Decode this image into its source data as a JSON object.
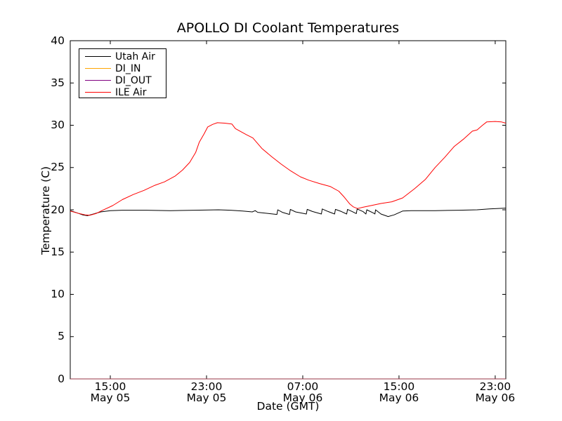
{
  "chart_data": {
    "type": "line",
    "title": "APOLLO DI Coolant Temperatures",
    "xlabel": "Date (GMT)",
    "ylabel": "Temperature (C)",
    "background": "#ffffff",
    "grid": false,
    "ylim": [
      0,
      40
    ],
    "yticks": [
      0,
      5,
      10,
      15,
      20,
      25,
      30,
      35,
      40
    ],
    "x_unit": "hours since May 05 00:00 GMT",
    "xlim": [
      11.67,
      47.88
    ],
    "xticks": [
      {
        "t": 15,
        "time": "15:00",
        "date": "May 05"
      },
      {
        "t": 23,
        "time": "23:00",
        "date": "May 05"
      },
      {
        "t": 31,
        "time": "07:00",
        "date": "May 06"
      },
      {
        "t": 39,
        "time": "15:00",
        "date": "May 06"
      },
      {
        "t": 47,
        "time": "23:00",
        "date": "May 06"
      }
    ],
    "legend": {
      "position": "upper left",
      "entries": [
        {
          "label": "Utah Air",
          "color": "#000000"
        },
        {
          "label": "DI_IN",
          "color": "#ffa500"
        },
        {
          "label": "DI_OUT",
          "color": "#800080"
        },
        {
          "label": "ILE Air",
          "color": "#ff0000"
        }
      ]
    },
    "series": [
      {
        "name": "Utah Air",
        "color": "#000000",
        "opacity": 1,
        "points": [
          [
            11.67,
            19.9
          ],
          [
            12.2,
            19.65
          ],
          [
            12.7,
            19.4
          ],
          [
            13.1,
            19.3
          ],
          [
            13.6,
            19.5
          ],
          [
            14.2,
            19.75
          ],
          [
            15,
            19.9
          ],
          [
            16,
            19.95
          ],
          [
            18,
            19.95
          ],
          [
            20,
            19.9
          ],
          [
            22,
            19.95
          ],
          [
            24,
            20
          ],
          [
            25,
            19.95
          ],
          [
            26,
            19.85
          ],
          [
            26.8,
            19.75
          ],
          [
            27.05,
            19.9
          ],
          [
            27.25,
            19.7
          ],
          [
            28.2,
            19.55
          ],
          [
            28.85,
            19.45
          ],
          [
            28.92,
            20
          ],
          [
            29.3,
            19.7
          ],
          [
            29.9,
            19.45
          ],
          [
            29.97,
            20.05
          ],
          [
            30.4,
            19.75
          ],
          [
            31.3,
            19.5
          ],
          [
            31.37,
            20.05
          ],
          [
            31.8,
            19.8
          ],
          [
            32.55,
            19.5
          ],
          [
            32.62,
            20.1
          ],
          [
            33.1,
            19.8
          ],
          [
            33.65,
            19.5
          ],
          [
            33.72,
            20.05
          ],
          [
            34.2,
            19.8
          ],
          [
            34.65,
            19.5
          ],
          [
            34.72,
            20.05
          ],
          [
            35.1,
            19.8
          ],
          [
            35.45,
            19.55
          ],
          [
            35.52,
            20.1
          ],
          [
            36,
            19.8
          ],
          [
            36.25,
            19.5
          ],
          [
            36.32,
            20
          ],
          [
            36.9,
            19.6
          ],
          [
            37,
            19.5
          ],
          [
            37.05,
            20
          ],
          [
            37.5,
            19.5
          ],
          [
            38.1,
            19.2
          ],
          [
            38.6,
            19.4
          ],
          [
            39.3,
            19.85
          ],
          [
            40,
            19.9
          ],
          [
            42,
            19.9
          ],
          [
            44,
            19.95
          ],
          [
            45.5,
            20
          ],
          [
            46.5,
            20.1
          ],
          [
            47.88,
            20.2
          ]
        ]
      },
      {
        "name": "DI_IN",
        "color": "#ffa500",
        "opacity": 0.7,
        "points": [
          [
            11.67,
            0
          ],
          [
            47.88,
            0
          ]
        ]
      },
      {
        "name": "DI_OUT",
        "color": "#800080",
        "opacity": 0.55,
        "points": [
          [
            11.67,
            0
          ],
          [
            47.88,
            0
          ]
        ]
      },
      {
        "name": "ILE Air",
        "color": "#ff0000",
        "opacity": 1,
        "points": [
          [
            11.67,
            19.85
          ],
          [
            12.3,
            19.6
          ],
          [
            12.9,
            19.4
          ],
          [
            13.3,
            19.35
          ],
          [
            13.8,
            19.55
          ],
          [
            14.3,
            19.9
          ],
          [
            15.2,
            20.5
          ],
          [
            16,
            21.2
          ],
          [
            16.9,
            21.8
          ],
          [
            17.8,
            22.3
          ],
          [
            18.7,
            22.9
          ],
          [
            19.5,
            23.3
          ],
          [
            20.4,
            24
          ],
          [
            21,
            24.7
          ],
          [
            21.6,
            25.6
          ],
          [
            22.1,
            26.8
          ],
          [
            22.4,
            28
          ],
          [
            22.8,
            29
          ],
          [
            23.1,
            29.8
          ],
          [
            23.5,
            30.1
          ],
          [
            23.9,
            30.3
          ],
          [
            24.5,
            30.25
          ],
          [
            25.1,
            30.15
          ],
          [
            25.4,
            29.6
          ],
          [
            25.9,
            29.2
          ],
          [
            26.3,
            28.9
          ],
          [
            26.85,
            28.5
          ],
          [
            27.6,
            27.25
          ],
          [
            28.4,
            26.3
          ],
          [
            29.2,
            25.4
          ],
          [
            30,
            24.6
          ],
          [
            30.8,
            23.9
          ],
          [
            31.5,
            23.5
          ],
          [
            32.4,
            23.1
          ],
          [
            33.3,
            22.75
          ],
          [
            34,
            22.2
          ],
          [
            34.45,
            21.5
          ],
          [
            34.9,
            20.7
          ],
          [
            35.2,
            20.35
          ],
          [
            35.55,
            20.15
          ],
          [
            36,
            20.3
          ],
          [
            36.5,
            20.45
          ],
          [
            37.5,
            20.75
          ],
          [
            38.4,
            20.95
          ],
          [
            39.3,
            21.4
          ],
          [
            40.3,
            22.5
          ],
          [
            41.2,
            23.6
          ],
          [
            42,
            25
          ],
          [
            42.8,
            26.2
          ],
          [
            43.6,
            27.5
          ],
          [
            44.4,
            28.4
          ],
          [
            45.1,
            29.3
          ],
          [
            45.5,
            29.45
          ],
          [
            45.9,
            29.95
          ],
          [
            46.3,
            30.4
          ],
          [
            47,
            30.45
          ],
          [
            47.5,
            30.4
          ],
          [
            47.88,
            30.25
          ]
        ]
      }
    ]
  }
}
